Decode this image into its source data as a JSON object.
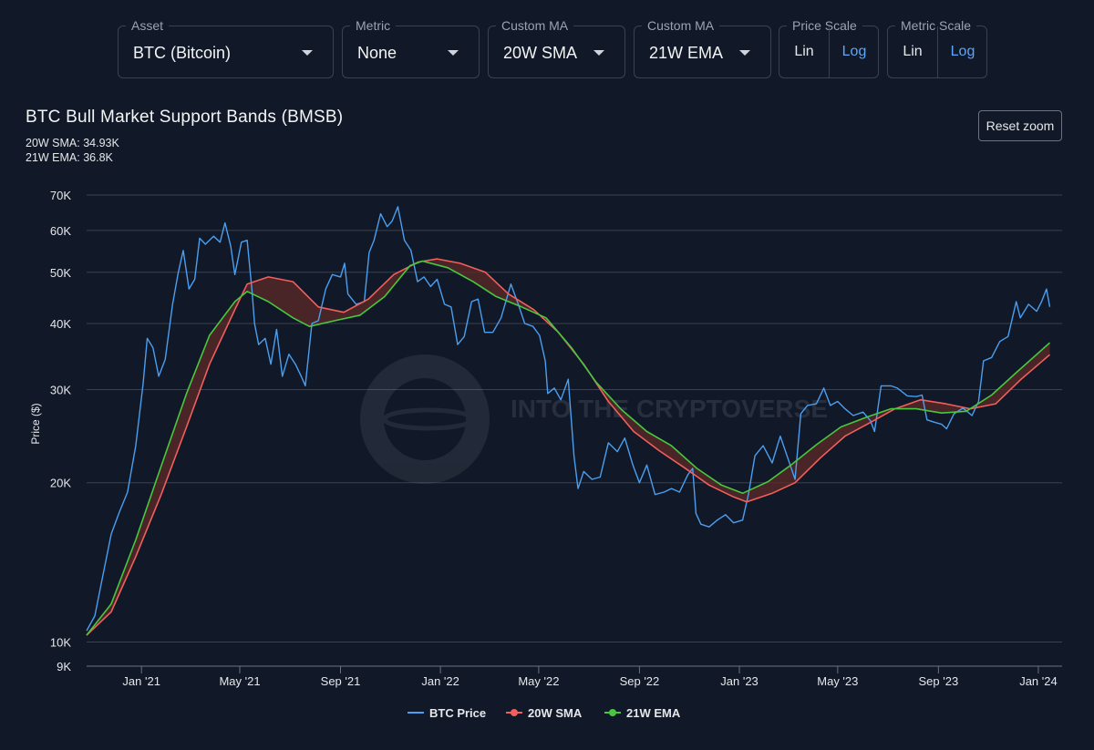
{
  "controls": {
    "asset": {
      "label": "Asset",
      "value": "BTC (Bitcoin)"
    },
    "metric": {
      "label": "Metric",
      "value": "None"
    },
    "ma1": {
      "label": "Custom MA",
      "value": "20W SMA"
    },
    "ma2": {
      "label": "Custom MA",
      "value": "21W EMA"
    },
    "price_scale": {
      "label": "Price Scale",
      "options": [
        "Lin",
        "Log"
      ],
      "selected": "Log"
    },
    "metric_scale": {
      "label": "Metric Scale",
      "options": [
        "Lin",
        "Log"
      ],
      "selected": "Log"
    }
  },
  "reset_zoom_label": "Reset zoom",
  "watermark": "INTO THE CRYPTOVERSE",
  "colors": {
    "price": "#4a9ff0",
    "sma": "#f25f5c",
    "ema": "#47c83e",
    "band": "#5c2a2a",
    "grid": "#3a4150",
    "background": "#111827"
  },
  "chart_data": {
    "type": "line",
    "title": "BTC Bull Market Support Bands (BMSB)",
    "subtitles": [
      "20W SMA: 34.93K",
      "21W EMA: 36.8K"
    ],
    "xlabel": "",
    "ylabel": "Price ($)",
    "y_scale": "log",
    "ylim": [
      9000,
      70000
    ],
    "xlim": [
      "2020-10-26",
      "2024-01-30"
    ],
    "y_ticks": [
      9000,
      10000,
      20000,
      30000,
      40000,
      50000,
      60000,
      70000
    ],
    "y_tick_labels": [
      "9K",
      "10K",
      "20K",
      "30K",
      "40K",
      "50K",
      "60K",
      "70K"
    ],
    "x_ticks": [
      "2021-01-01",
      "2021-05-01",
      "2021-09-01",
      "2022-01-01",
      "2022-05-01",
      "2022-09-01",
      "2023-01-01",
      "2023-05-01",
      "2023-09-01",
      "2024-01-01"
    ],
    "x_tick_labels": [
      "Jan '21",
      "May '21",
      "Sep '21",
      "Jan '22",
      "May '22",
      "Sep '22",
      "Jan '23",
      "May '23",
      "Sep '23",
      "Jan '24"
    ],
    "grid": true,
    "legend_position": "bottom-center",
    "series": [
      {
        "name": "BTC Price",
        "x": [
          "2020-10-26",
          "2020-11-05",
          "2020-11-15",
          "2020-11-25",
          "2020-12-05",
          "2020-12-15",
          "2020-12-25",
          "2021-01-03",
          "2021-01-08",
          "2021-01-15",
          "2021-01-22",
          "2021-01-30",
          "2021-02-08",
          "2021-02-15",
          "2021-02-21",
          "2021-02-28",
          "2021-03-07",
          "2021-03-13",
          "2021-03-20",
          "2021-03-30",
          "2021-04-07",
          "2021-04-13",
          "2021-04-20",
          "2021-04-25",
          "2021-05-03",
          "2021-05-10",
          "2021-05-16",
          "2021-05-19",
          "2021-05-24",
          "2021-06-01",
          "2021-06-08",
          "2021-06-15",
          "2021-06-22",
          "2021-06-30",
          "2021-07-08",
          "2021-07-15",
          "2021-07-20",
          "2021-07-28",
          "2021-08-05",
          "2021-08-14",
          "2021-08-22",
          "2021-09-01",
          "2021-09-06",
          "2021-09-10",
          "2021-09-20",
          "2021-09-30",
          "2021-10-06",
          "2021-10-12",
          "2021-10-20",
          "2021-10-28",
          "2021-11-03",
          "2021-11-10",
          "2021-11-18",
          "2021-11-26",
          "2021-12-04",
          "2021-12-12",
          "2021-12-20",
          "2021-12-28",
          "2022-01-06",
          "2022-01-14",
          "2022-01-22",
          "2022-01-30",
          "2022-02-08",
          "2022-02-16",
          "2022-02-24",
          "2022-03-06",
          "2022-03-16",
          "2022-03-28",
          "2022-04-06",
          "2022-04-14",
          "2022-04-24",
          "2022-05-02",
          "2022-05-09",
          "2022-05-12",
          "2022-05-20",
          "2022-05-28",
          "2022-06-06",
          "2022-06-13",
          "2022-06-18",
          "2022-06-25",
          "2022-07-05",
          "2022-07-15",
          "2022-07-25",
          "2022-08-05",
          "2022-08-14",
          "2022-08-24",
          "2022-09-01",
          "2022-09-10",
          "2022-09-20",
          "2022-10-01",
          "2022-10-10",
          "2022-10-20",
          "2022-10-30",
          "2022-11-05",
          "2022-11-09",
          "2022-11-15",
          "2022-11-25",
          "2022-12-05",
          "2022-12-15",
          "2022-12-25",
          "2023-01-05",
          "2023-01-12",
          "2023-01-20",
          "2023-01-30",
          "2023-02-10",
          "2023-02-20",
          "2023-03-01",
          "2023-03-10",
          "2023-03-17",
          "2023-03-25",
          "2023-04-05",
          "2023-04-14",
          "2023-04-22",
          "2023-05-01",
          "2023-05-10",
          "2023-05-20",
          "2023-06-01",
          "2023-06-10",
          "2023-06-15",
          "2023-06-23",
          "2023-07-05",
          "2023-07-13",
          "2023-07-25",
          "2023-08-05",
          "2023-08-12",
          "2023-08-18",
          "2023-08-28",
          "2023-09-05",
          "2023-09-11",
          "2023-09-20",
          "2023-10-01",
          "2023-10-12",
          "2023-10-20",
          "2023-10-26",
          "2023-11-05",
          "2023-11-15",
          "2023-11-25",
          "2023-12-05",
          "2023-12-10",
          "2023-12-20",
          "2023-12-30",
          "2024-01-05",
          "2024-01-11",
          "2024-01-15"
        ],
        "y": [
          10500,
          11200,
          13400,
          16000,
          17600,
          19200,
          23500,
          30800,
          37500,
          36000,
          31800,
          34200,
          43500,
          50000,
          55000,
          46500,
          48500,
          58000,
          56500,
          58500,
          57000,
          62000,
          56000,
          49500,
          57000,
          57500,
          46000,
          40000,
          36500,
          37500,
          33500,
          39000,
          31800,
          35000,
          33500,
          31800,
          30500,
          40000,
          40500,
          46500,
          49500,
          49000,
          52000,
          45500,
          43500,
          44000,
          54500,
          57500,
          64500,
          61000,
          62500,
          66500,
          57500,
          55000,
          48000,
          49000,
          47000,
          48500,
          43500,
          43000,
          36500,
          37800,
          44000,
          44500,
          38500,
          38500,
          41000,
          47500,
          43500,
          40000,
          39500,
          38000,
          34000,
          29500,
          30200,
          28700,
          31400,
          22500,
          19500,
          21000,
          20300,
          20500,
          23800,
          22900,
          24300,
          21600,
          20000,
          21600,
          19000,
          19200,
          19500,
          19200,
          20700,
          21300,
          17500,
          16700,
          16500,
          17000,
          17400,
          16800,
          17000,
          19000,
          22500,
          23500,
          21800,
          24500,
          22300,
          20300,
          27000,
          28000,
          28200,
          30200,
          28000,
          28500,
          27600,
          26800,
          27200,
          26200,
          25000,
          30500,
          30500,
          30200,
          29200,
          29100,
          29300,
          26300,
          26000,
          25800,
          25300,
          27000,
          27700,
          26800,
          28500,
          34000,
          34500,
          37000,
          37800,
          44000,
          41000,
          43500,
          42200,
          44000,
          46500,
          43000
        ]
      },
      {
        "name": "20W SMA",
        "x": [
          "2020-10-26",
          "2020-11-25",
          "2020-12-25",
          "2021-01-25",
          "2021-02-25",
          "2021-03-25",
          "2021-04-25",
          "2021-05-10",
          "2021-06-05",
          "2021-07-05",
          "2021-08-05",
          "2021-09-05",
          "2021-10-05",
          "2021-11-05",
          "2021-12-05",
          "2021-12-28",
          "2022-01-25",
          "2022-02-25",
          "2022-03-25",
          "2022-04-25",
          "2022-05-25",
          "2022-06-25",
          "2022-07-25",
          "2022-08-25",
          "2022-09-25",
          "2022-10-25",
          "2022-11-25",
          "2022-12-25",
          "2023-01-10",
          "2023-02-10",
          "2023-03-10",
          "2023-04-10",
          "2023-05-10",
          "2023-06-10",
          "2023-07-10",
          "2023-08-10",
          "2023-09-10",
          "2023-10-10",
          "2023-11-10",
          "2023-12-10",
          "2024-01-15"
        ],
        "y": [
          10300,
          11400,
          14500,
          19000,
          25500,
          33500,
          42500,
          47500,
          49000,
          48000,
          43000,
          42000,
          44500,
          49500,
          52300,
          53000,
          52000,
          50000,
          45500,
          42500,
          38500,
          33500,
          28500,
          25000,
          23000,
          21400,
          19800,
          18800,
          18400,
          19100,
          20000,
          22300,
          24500,
          26000,
          27600,
          28700,
          28200,
          27600,
          28200,
          31300,
          34930
        ]
      },
      {
        "name": "21W EMA",
        "x": [
          "2020-10-26",
          "2020-11-25",
          "2020-12-25",
          "2021-01-25",
          "2021-02-25",
          "2021-03-25",
          "2021-04-25",
          "2021-05-10",
          "2021-06-05",
          "2021-07-05",
          "2021-07-25",
          "2021-08-25",
          "2021-09-25",
          "2021-10-25",
          "2021-11-25",
          "2021-12-10",
          "2022-01-10",
          "2022-02-10",
          "2022-03-10",
          "2022-04-10",
          "2022-05-10",
          "2022-06-10",
          "2022-07-10",
          "2022-08-10",
          "2022-09-10",
          "2022-10-10",
          "2022-11-10",
          "2022-12-10",
          "2023-01-05",
          "2023-02-05",
          "2023-03-05",
          "2023-04-05",
          "2023-05-05",
          "2023-06-05",
          "2023-07-05",
          "2023-08-05",
          "2023-09-05",
          "2023-10-05",
          "2023-11-05",
          "2023-12-05",
          "2024-01-15"
        ],
        "y": [
          10300,
          11800,
          15600,
          21500,
          29500,
          38000,
          44000,
          46000,
          44000,
          41000,
          39500,
          40500,
          41500,
          45000,
          51500,
          52500,
          51000,
          48000,
          45000,
          43000,
          41000,
          36000,
          31000,
          27500,
          25000,
          23500,
          21300,
          19800,
          19100,
          20100,
          21600,
          23600,
          25500,
          26600,
          27600,
          27600,
          27100,
          27300,
          29300,
          32300,
          36800
        ]
      }
    ]
  },
  "band_fill_note": ""
}
